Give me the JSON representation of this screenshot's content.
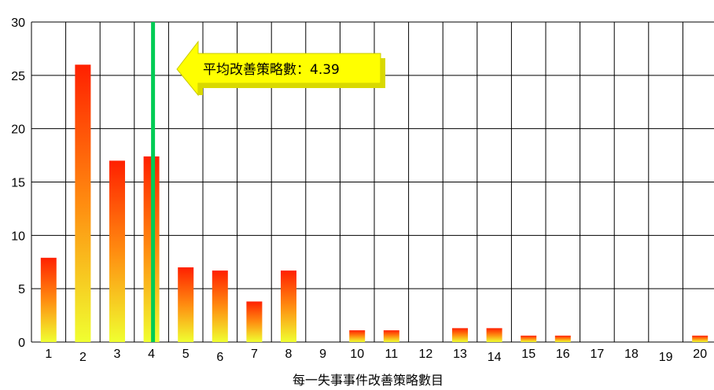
{
  "chart_data": {
    "type": "bar",
    "xlabel": "每一失事事件改善策略數目",
    "ylabel": "",
    "ylim": [
      0,
      30
    ],
    "yticks": [
      0,
      5,
      10,
      15,
      20,
      25,
      30
    ],
    "grid": true,
    "categories": [
      "1",
      "2",
      "3",
      "4",
      "5",
      "6",
      "7",
      "8",
      "9",
      "10",
      "11",
      "12",
      "13",
      "14",
      "15",
      "16",
      "17",
      "18",
      "19",
      "20"
    ],
    "values": [
      7.9,
      26.0,
      17.0,
      17.4,
      7.0,
      6.7,
      3.8,
      6.7,
      0,
      1.1,
      1.1,
      0,
      1.3,
      1.3,
      0.6,
      0.6,
      0,
      0,
      0,
      0.6
    ],
    "mean": {
      "value": 4.39,
      "label": "平均改善策略數：4.39",
      "line_color": "#00cc55"
    },
    "colors": {
      "bar_top": "#ff2000",
      "bar_mid": "#ff8c10",
      "bar_bottom": "#f0ff30",
      "callout_fill": "#ffff00",
      "grid": "#000000"
    }
  }
}
